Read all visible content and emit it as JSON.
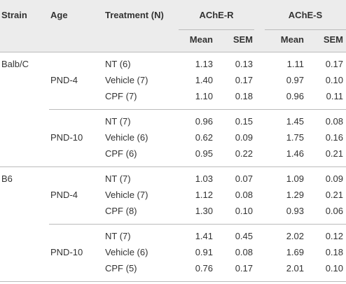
{
  "header": {
    "columns": [
      "Strain",
      "Age",
      "Treatment (N)",
      "AChE-R",
      "AChE-S"
    ],
    "subcolumns": [
      "Mean",
      "SEM",
      "Mean",
      "SEM"
    ]
  },
  "table": {
    "strains": [
      {
        "name": "Balb/C",
        "ages": [
          {
            "age": "PND-4",
            "rows": [
              [
                "NT (6)",
                "1.13",
                "0.13",
                "1.11",
                "0.17"
              ],
              [
                "Vehicle (7)",
                "1.40",
                "0.17",
                "0.97",
                "0.10"
              ],
              [
                "CPF (7)",
                "1.10",
                "0.18",
                "0.96",
                "0.11"
              ]
            ]
          },
          {
            "age": "PND-10",
            "rows": [
              [
                "NT (7)",
                "0.96",
                "0.15",
                "1.45",
                "0.08"
              ],
              [
                "Vehicle (6)",
                "0.62",
                "0.09",
                "1.75",
                "0.16"
              ],
              [
                "CPF (6)",
                "0.95",
                "0.22",
                "1.46",
                "0.21"
              ]
            ]
          }
        ]
      },
      {
        "name": "B6",
        "ages": [
          {
            "age": "PND-4",
            "rows": [
              [
                "NT (7)",
                "1.03",
                "0.07",
                "1.09",
                "0.09"
              ],
              [
                "Vehicle (7)",
                "1.12",
                "0.08",
                "1.29",
                "0.21"
              ],
              [
                "CPF (8)",
                "1.30",
                "0.10",
                "0.93",
                "0.06"
              ]
            ]
          },
          {
            "age": "PND-10",
            "rows": [
              [
                "NT (7)",
                "1.41",
                "0.45",
                "2.02",
                "0.12"
              ],
              [
                "Vehicle (6)",
                "0.91",
                "0.08",
                "1.69",
                "0.18"
              ],
              [
                "CPF (5)",
                "0.76",
                "0.17",
                "2.01",
                "0.10"
              ]
            ]
          }
        ]
      }
    ]
  }
}
